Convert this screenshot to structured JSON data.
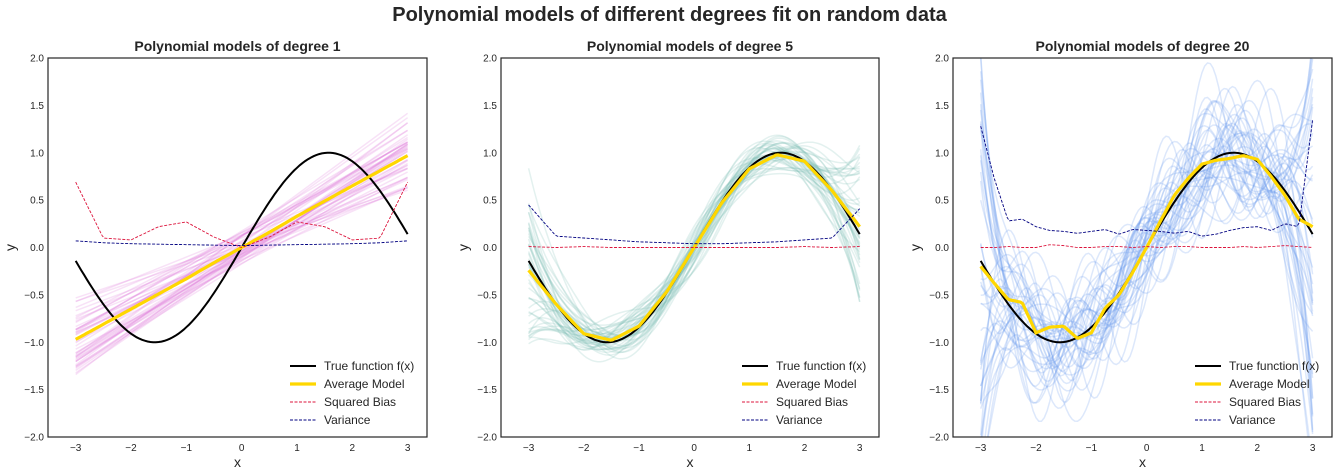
{
  "figure": {
    "suptitle": "Polynomial models of different degrees fit on random data"
  },
  "legend": {
    "entries": [
      {
        "label": "True function f(x)",
        "color": "#000000",
        "style": "solid-thick"
      },
      {
        "label": "Average Model",
        "color": "#FFD700",
        "style": "solid-thicker"
      },
      {
        "label": "Squared Bias",
        "color": "#DC143C",
        "style": "dashed"
      },
      {
        "label": "Variance",
        "color": "#000080",
        "style": "dashed"
      }
    ],
    "placement": "lower-right"
  },
  "chart_data": [
    {
      "type": "line",
      "title": "Polynomial models of degree 1",
      "xlabel": "x",
      "ylabel": "y",
      "xlim": [
        -3.5,
        3.35
      ],
      "ylim": [
        -2.0,
        2.0
      ],
      "xticks": [
        "−3",
        "−2",
        "−1",
        "0",
        "1",
        "2",
        "3"
      ],
      "yticks": [
        "−2.0",
        "−1.5",
        "−1.0",
        "−0.5",
        "0.0",
        "0.5",
        "1.0",
        "1.5",
        "2.0"
      ],
      "sample_color": "#DA70D6",
      "true_function": "sin(x)",
      "x": [
        -3,
        -2.5,
        -2,
        -1.5,
        -1,
        -0.5,
        0,
        0.5,
        1,
        1.5,
        2,
        2.5,
        3
      ],
      "average_model": [
        -0.97,
        -0.81,
        -0.65,
        -0.49,
        -0.33,
        -0.16,
        0.0,
        0.16,
        0.33,
        0.49,
        0.65,
        0.81,
        0.97
      ],
      "squared_bias": [
        0.69,
        0.1,
        0.08,
        0.22,
        0.27,
        0.11,
        0.0,
        0.11,
        0.27,
        0.22,
        0.08,
        0.1,
        0.69
      ],
      "variance": [
        0.07,
        0.05,
        0.04,
        0.035,
        0.03,
        0.025,
        0.02,
        0.025,
        0.03,
        0.035,
        0.04,
        0.05,
        0.07
      ]
    },
    {
      "type": "line",
      "title": "Polynomial models of degree 5",
      "xlabel": "x",
      "ylabel": "y",
      "xlim": [
        -3.5,
        3.35
      ],
      "ylim": [
        -2.0,
        2.0
      ],
      "xticks": [
        "−3",
        "−2",
        "−1",
        "0",
        "1",
        "2",
        "3"
      ],
      "yticks": [
        "−2.0",
        "−1.5",
        "−1.0",
        "−0.5",
        "0.0",
        "0.5",
        "1.0",
        "1.5",
        "2.0"
      ],
      "sample_color": "#7FBFB5",
      "true_function": "sin(x)",
      "x": [
        -3,
        -2.5,
        -2,
        -1.5,
        -1,
        -0.5,
        0,
        0.5,
        1,
        1.5,
        2,
        2.5,
        3
      ],
      "average_model": [
        -0.24,
        -0.6,
        -0.91,
        -0.98,
        -0.83,
        -0.47,
        0.0,
        0.47,
        0.83,
        0.98,
        0.91,
        0.6,
        0.22
      ],
      "squared_bias": [
        0.01,
        0.0,
        0.01,
        0.0,
        0.0,
        0.0,
        0.0,
        0.0,
        0.0,
        0.0,
        0.01,
        0.0,
        0.01
      ],
      "variance": [
        0.45,
        0.12,
        0.1,
        0.08,
        0.06,
        0.05,
        0.04,
        0.04,
        0.05,
        0.06,
        0.08,
        0.1,
        0.41
      ]
    },
    {
      "type": "line",
      "title": "Polynomial models of degree 20",
      "xlabel": "x",
      "ylabel": "y",
      "xlim": [
        -3.5,
        3.35
      ],
      "ylim": [
        -2.0,
        2.0
      ],
      "xticks": [
        "−3",
        "−2",
        "−1",
        "0",
        "1",
        "2",
        "3"
      ],
      "yticks": [
        "−2.0",
        "−1.5",
        "−1.0",
        "−0.5",
        "0.0",
        "0.5",
        "1.0",
        "1.5",
        "2.0"
      ],
      "sample_color": "#6495ED",
      "true_function": "sin(x)",
      "x": [
        -3,
        -2.75,
        -2.5,
        -2.25,
        -2,
        -1.75,
        -1.5,
        -1.25,
        -1,
        -0.75,
        -0.5,
        -0.25,
        0,
        0.25,
        0.5,
        0.75,
        1,
        1.25,
        1.5,
        1.75,
        2,
        2.25,
        2.5,
        2.75,
        3
      ],
      "average_model": [
        -0.2,
        -0.38,
        -0.55,
        -0.58,
        -0.9,
        -0.84,
        -0.83,
        -0.96,
        -0.9,
        -0.64,
        -0.5,
        -0.26,
        0.0,
        0.28,
        0.55,
        0.73,
        0.88,
        0.92,
        0.94,
        0.97,
        0.93,
        0.75,
        0.55,
        0.3,
        0.22
      ],
      "squared_bias": [
        0.0,
        0.0,
        0.01,
        0.0,
        0.0,
        0.03,
        0.02,
        0.0,
        0.0,
        0.01,
        0.01,
        0.0,
        0.01,
        0.0,
        0.01,
        0.01,
        0.0,
        0.0,
        0.0,
        0.01,
        0.0,
        0.01,
        0.02,
        0.01,
        0.0
      ],
      "variance": [
        1.28,
        0.72,
        0.28,
        0.3,
        0.22,
        0.18,
        0.17,
        0.15,
        0.17,
        0.19,
        0.14,
        0.19,
        0.18,
        0.17,
        0.15,
        0.17,
        0.12,
        0.14,
        0.18,
        0.21,
        0.22,
        0.18,
        0.25,
        0.22,
        1.35
      ]
    }
  ]
}
